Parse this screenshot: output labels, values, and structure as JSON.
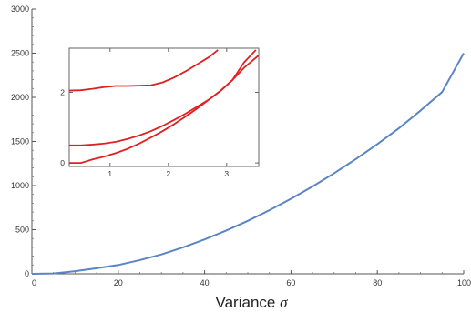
{
  "chart_data": [
    {
      "type": "line",
      "xlabel": "Variance",
      "xlabel_symbol": "σ",
      "ylabel": "",
      "xlim": [
        0,
        100
      ],
      "ylim": [
        0,
        3000
      ],
      "x_ticks": [
        0,
        20,
        40,
        60,
        80,
        100
      ],
      "x_tick_labels": [
        "0",
        "20",
        "40",
        "60",
        "80",
        "100"
      ],
      "y_ticks": [
        0,
        500,
        1000,
        1500,
        2000,
        2500,
        3000
      ],
      "y_tick_labels": [
        "0",
        "500",
        "1000",
        "1500",
        "2000",
        "2500",
        "3000"
      ],
      "grid": false,
      "series_color": "#5B84C4",
      "series": [
        {
          "x": [
            0,
            5,
            10,
            15,
            20,
            25,
            30,
            35,
            40,
            45,
            50,
            55,
            60,
            65,
            70,
            75,
            80,
            85,
            90,
            95,
            100
          ],
          "values": [
            0,
            4,
            30,
            63,
            100,
            155,
            220,
            300,
            390,
            490,
            600,
            720,
            850,
            990,
            1140,
            1300,
            1470,
            1650,
            1850,
            2060,
            2500
          ]
        }
      ]
    },
    {
      "type": "line",
      "xlabel": "",
      "ylabel": "",
      "xlim": [
        0.3,
        3.55
      ],
      "ylim": [
        -0.1,
        3.25
      ],
      "x_ticks": [
        1,
        2,
        3
      ],
      "x_tick_labels": [
        "1",
        "2",
        "3"
      ],
      "y_ticks": [
        0,
        2
      ],
      "y_tick_labels": [
        "0",
        "2"
      ],
      "grid": false,
      "series_color": "#E02020",
      "series": [
        {
          "x": [
            0.3,
            0.5,
            0.7,
            0.9,
            1.1,
            1.3,
            1.5,
            1.7,
            1.9,
            2.1,
            2.3,
            2.5,
            2.7,
            2.85
          ],
          "values": [
            2.05,
            2.06,
            2.1,
            2.15,
            2.18,
            2.18,
            2.19,
            2.2,
            2.28,
            2.42,
            2.6,
            2.8,
            3.0,
            3.2
          ]
        },
        {
          "x": [
            0.3,
            0.5,
            0.7,
            0.9,
            1.1,
            1.3,
            1.5,
            1.7,
            1.9,
            2.1,
            2.3,
            2.5,
            2.7,
            2.9,
            3.1,
            3.3,
            3.5
          ],
          "values": [
            0.5,
            0.5,
            0.52,
            0.55,
            0.6,
            0.68,
            0.78,
            0.9,
            1.05,
            1.22,
            1.4,
            1.6,
            1.8,
            2.05,
            2.35,
            2.85,
            3.2
          ]
        },
        {
          "x": [
            0.3,
            0.5,
            0.6,
            0.7,
            0.9,
            1.1,
            1.3,
            1.5,
            1.7,
            1.9,
            2.1,
            2.3,
            2.5,
            2.7,
            2.9,
            3.1,
            3.3,
            3.55
          ],
          "values": [
            0.0,
            0.0,
            0.05,
            0.1,
            0.18,
            0.28,
            0.4,
            0.55,
            0.72,
            0.9,
            1.1,
            1.32,
            1.55,
            1.8,
            2.05,
            2.35,
            2.7,
            3.05
          ]
        }
      ]
    }
  ]
}
